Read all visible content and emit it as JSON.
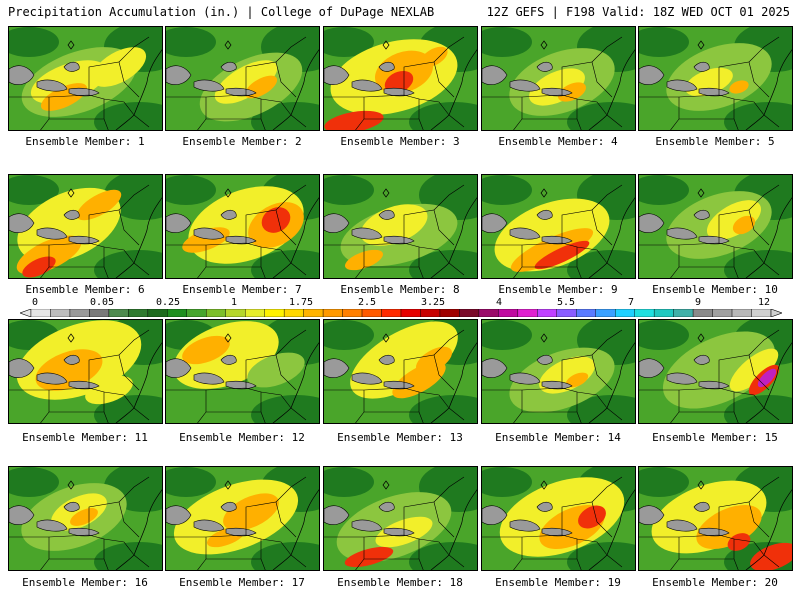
{
  "header": {
    "title": "Precipitation Accumulation (in.) | College of DuPage NEXLAB",
    "run_info": "12Z GEFS | F198 Valid: 18Z WED OCT 01 2025"
  },
  "label_prefix": "Ensemble Member: ",
  "members": [
    {
      "id": 1,
      "label": "Ensemble Member: 1"
    },
    {
      "id": 2,
      "label": "Ensemble Member: 2"
    },
    {
      "id": 3,
      "label": "Ensemble Member: 3"
    },
    {
      "id": 4,
      "label": "Ensemble Member: 4"
    },
    {
      "id": 5,
      "label": "Ensemble Member: 5"
    },
    {
      "id": 6,
      "label": "Ensemble Member: 6"
    },
    {
      "id": 7,
      "label": "Ensemble Member: 7"
    },
    {
      "id": 8,
      "label": "Ensemble Member: 8"
    },
    {
      "id": 9,
      "label": "Ensemble Member: 9"
    },
    {
      "id": 10,
      "label": "Ensemble Member: 10"
    },
    {
      "id": 11,
      "label": "Ensemble Member: 11"
    },
    {
      "id": 12,
      "label": "Ensemble Member: 12"
    },
    {
      "id": 13,
      "label": "Ensemble Member: 13"
    },
    {
      "id": 14,
      "label": "Ensemble Member: 14"
    },
    {
      "id": 15,
      "label": "Ensemble Member: 15"
    },
    {
      "id": 16,
      "label": "Ensemble Member: 16"
    },
    {
      "id": 17,
      "label": "Ensemble Member: 17"
    },
    {
      "id": 18,
      "label": "Ensemble Member: 18"
    },
    {
      "id": 19,
      "label": "Ensemble Member: 19"
    },
    {
      "id": 20,
      "label": "Ensemble Member: 20"
    }
  ],
  "colorbar": {
    "tick_labels": [
      "0",
      "0.05",
      "0.25",
      "1",
      "1.75",
      "2.5",
      "3.25",
      "4",
      "5.5",
      "7",
      "9",
      "12"
    ],
    "colors": [
      "#e6e6e6",
      "#bdbdbd",
      "#9a9a9a",
      "#7a7a7a",
      "#4e8a4e",
      "#2f7a2f",
      "#1e6b1e",
      "#1f8f1f",
      "#46a62d",
      "#7cbf2a",
      "#b5d62a",
      "#e6ee2a",
      "#fff200",
      "#ffd700",
      "#ffb300",
      "#ff9900",
      "#ff7f00",
      "#ff5a00",
      "#ff2a00",
      "#e60000",
      "#c80000",
      "#a00000",
      "#7a0a2a",
      "#9a0a6a",
      "#c00aa0",
      "#e020d0",
      "#c040ff",
      "#8a5cff",
      "#5a7aff",
      "#3aa0ff",
      "#20d0ff",
      "#20e0e0",
      "#20c8c0",
      "#40b0a8",
      "#8a8a8a",
      "#a0a0a0",
      "#b8b8b8",
      "#d0d0d0"
    ]
  },
  "palette": {
    "dark_green": "#1f7a1f",
    "green": "#4aa52a",
    "light_green": "#8cc63f",
    "yellow": "#f2ef2a",
    "orange": "#ffb000",
    "red": "#f0300a",
    "magenta": "#c020c0",
    "gray": "#9a9a9a"
  }
}
